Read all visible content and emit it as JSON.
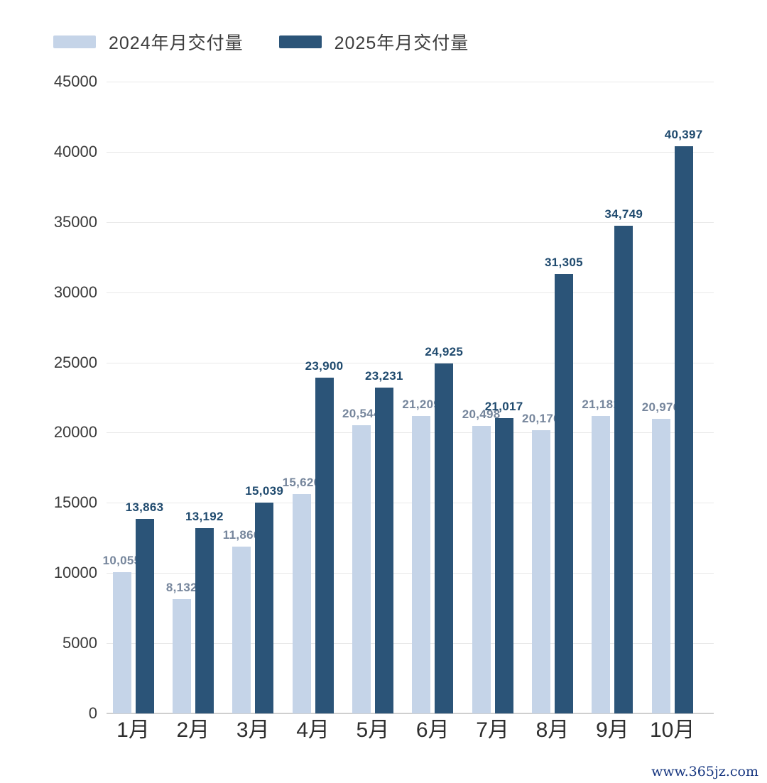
{
  "page": {
    "watermark": "www.365jz.com"
  },
  "legend": [
    {
      "label": "2024年月交付量",
      "color": "#c5d4e8"
    },
    {
      "label": "2025年月交付量",
      "color": "#2b5478"
    }
  ],
  "chart_data": {
    "type": "bar",
    "title": "",
    "xlabel": "",
    "ylabel": "",
    "categories": [
      "1月",
      "2月",
      "3月",
      "4月",
      "5月",
      "6月",
      "7月",
      "8月",
      "9月",
      "10月"
    ],
    "series": [
      {
        "name": "2024年月交付量",
        "color": "#c5d4e8",
        "label_color": "#76869c",
        "values": [
          10055,
          8132,
          11866,
          15620,
          20544,
          21209,
          20498,
          20176,
          21181,
          20976
        ],
        "value_labels": [
          "10,055",
          "8,132",
          "11,866",
          "15,620",
          "20,544",
          "21,209",
          "20,498",
          "20,176",
          "21,181",
          "20,976"
        ]
      },
      {
        "name": "2025年月交付量",
        "color": "#2b5478",
        "label_color": "#1f4a6e",
        "values": [
          13863,
          13192,
          15039,
          23900,
          23231,
          24925,
          21017,
          31305,
          34749,
          40397
        ],
        "value_labels": [
          "13,863",
          "13,192",
          "15,039",
          "23,900",
          "23,231",
          "24,925",
          "21,017",
          "31,305",
          "34,749",
          "40,397"
        ]
      }
    ],
    "ylim": [
      0,
      45000
    ],
    "yticks": [
      0,
      5000,
      10000,
      15000,
      20000,
      25000,
      30000,
      35000,
      40000,
      45000
    ],
    "grid": true,
    "value_labels_shown": true,
    "legend_position": "top-left"
  },
  "colors": {
    "background": "#ffffff",
    "gridline": "#e9e9e9",
    "baseline": "#cfcfcf",
    "axis_text": "#3a3a3a",
    "watermark": "#15357f"
  }
}
